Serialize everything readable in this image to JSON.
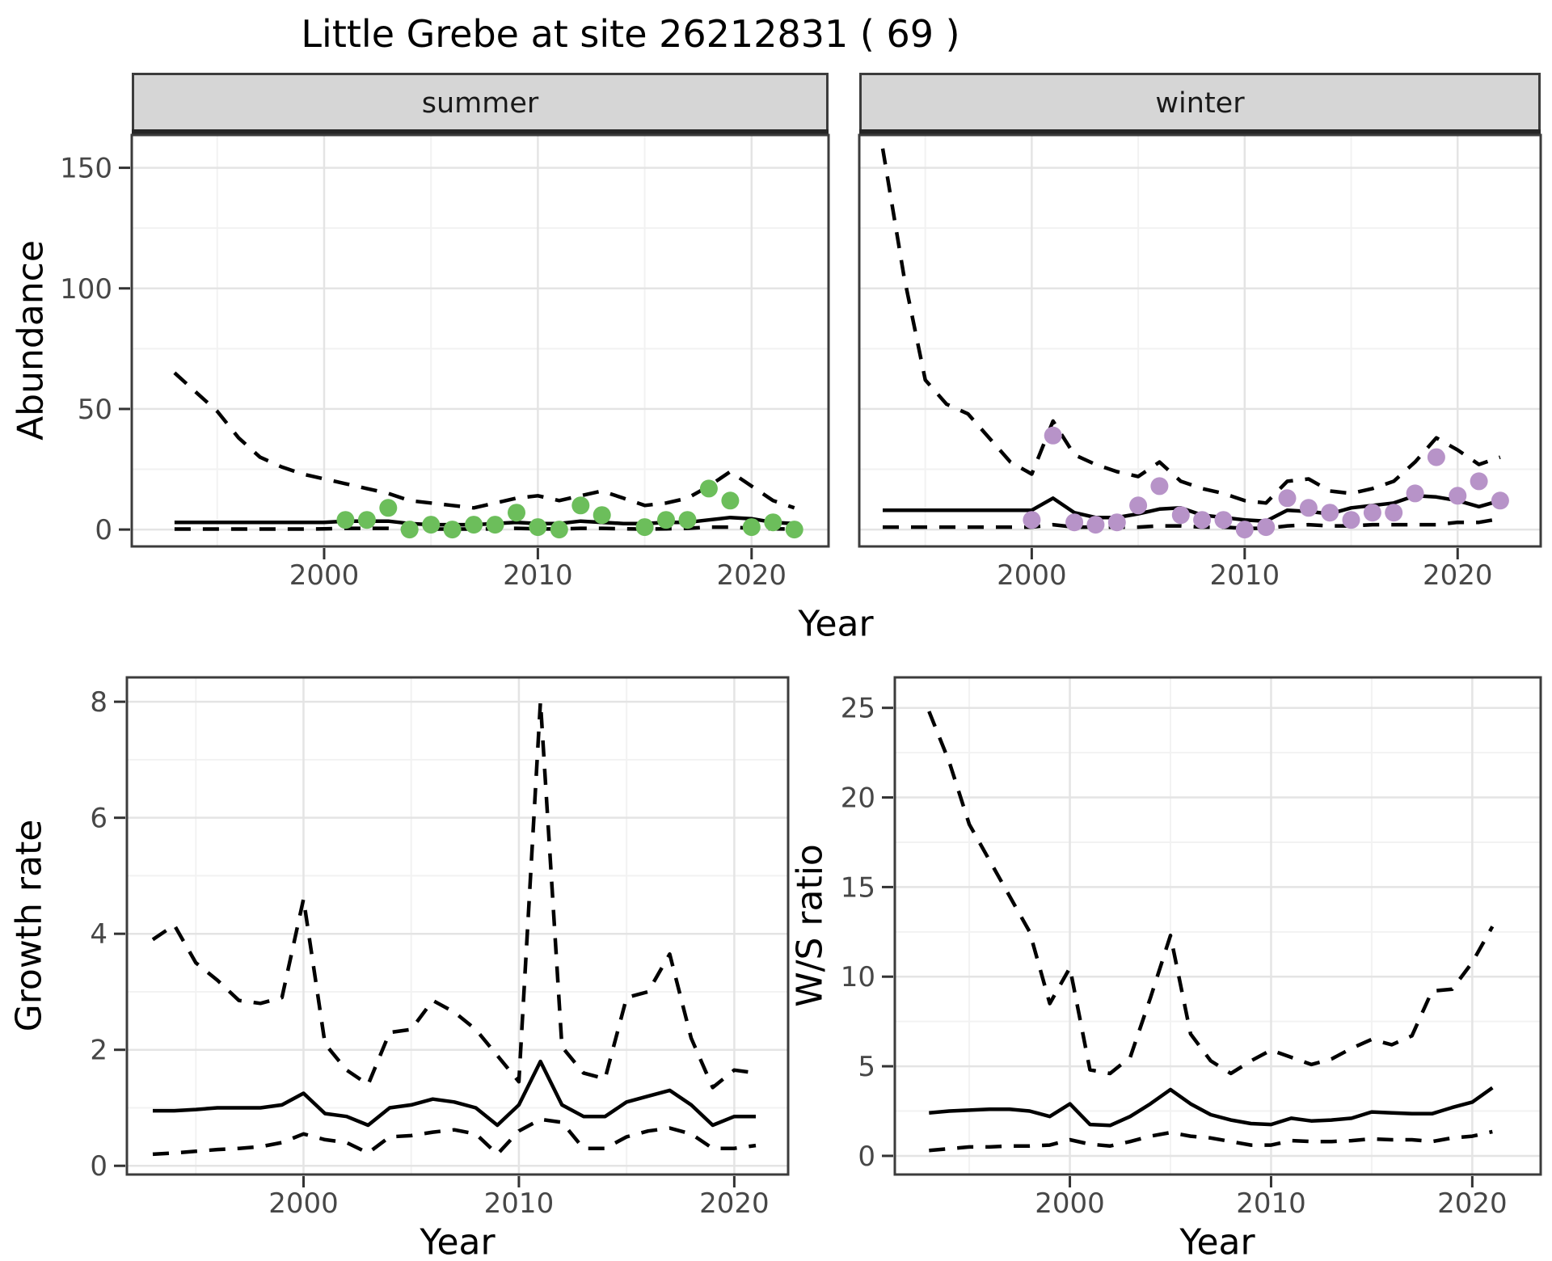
{
  "title": "Little Grebe at site 26212831 ( 69 )",
  "facets": [
    "summer",
    "winter"
  ],
  "axes": {
    "abundance": "Abundance",
    "year": "Year",
    "growth_rate": "Growth rate",
    "ws_ratio": "W/S ratio"
  },
  "colors": {
    "summer_point": "#6CBE5B",
    "winter_point": "#B793C8",
    "line": "#000000",
    "strip_fill": "#D6D6D6",
    "grid_major": "#E4E4E4",
    "grid_minor": "#F2F2F2",
    "panel_border": "#3C3C3C",
    "tick_text": "#474747"
  },
  "chart_data": [
    {
      "type": "line",
      "facet": "summer",
      "title": "Abundance - summer facet",
      "xlabel": "Year",
      "ylabel": "Abundance",
      "x": [
        1993,
        1994,
        1995,
        1996,
        1997,
        1998,
        1999,
        2000,
        2001,
        2002,
        2003,
        2004,
        2005,
        2006,
        2007,
        2008,
        2009,
        2010,
        2011,
        2012,
        2013,
        2014,
        2015,
        2016,
        2017,
        2018,
        2019,
        2020,
        2021,
        2022
      ],
      "series": [
        {
          "name": "median",
          "style": "solid",
          "values": [
            3,
            3,
            3,
            3,
            3,
            3,
            3,
            3,
            3.5,
            3.5,
            3.5,
            2.5,
            2,
            2,
            2,
            2.5,
            3,
            2.5,
            2.5,
            3.5,
            3,
            2.5,
            2.5,
            3,
            3,
            4,
            5,
            4.5,
            3,
            2.5
          ]
        },
        {
          "name": "lower95",
          "style": "dashed",
          "values": [
            0.2,
            0.2,
            0.2,
            0.2,
            0.2,
            0.2,
            0.2,
            0.3,
            0.5,
            0.5,
            0.5,
            0.2,
            0.2,
            0.2,
            0.2,
            0.3,
            0.5,
            0.3,
            0.2,
            0.5,
            0.5,
            0.3,
            0.2,
            0.3,
            0.5,
            1,
            1,
            0.5,
            0.3,
            0.2
          ]
        },
        {
          "name": "upper95",
          "style": "dashed",
          "values": [
            65,
            57,
            49,
            38,
            30,
            26,
            23,
            21,
            19,
            17,
            15,
            12,
            11,
            10,
            9,
            11,
            13,
            14,
            12,
            14,
            16,
            13,
            10,
            11,
            13,
            18,
            24,
            18,
            12,
            9
          ]
        }
      ],
      "points": {
        "name": "observed-counts-summer",
        "color_key": "summer_point",
        "data": [
          [
            2001,
            4
          ],
          [
            2002,
            4
          ],
          [
            2003,
            9
          ],
          [
            2004,
            0
          ],
          [
            2005,
            2
          ],
          [
            2006,
            0
          ],
          [
            2007,
            2
          ],
          [
            2008,
            2
          ],
          [
            2009,
            7
          ],
          [
            2010,
            1
          ],
          [
            2011,
            0
          ],
          [
            2012,
            10
          ],
          [
            2013,
            6
          ],
          [
            2015,
            1
          ],
          [
            2016,
            4
          ],
          [
            2017,
            4
          ],
          [
            2018,
            17
          ],
          [
            2019,
            12
          ],
          [
            2020,
            1
          ],
          [
            2021,
            3
          ],
          [
            2022,
            0
          ]
        ]
      },
      "xticks": [
        2000,
        2010,
        2020
      ],
      "yticks": [
        0,
        50,
        100,
        150
      ],
      "xlim": [
        1991,
        2023.6
      ],
      "ylim": [
        -7,
        163.6
      ],
      "grid": true
    },
    {
      "type": "line",
      "facet": "winter",
      "title": "Abundance - winter facet",
      "xlabel": "Year",
      "ylabel": "Abundance",
      "x": [
        1993,
        1994,
        1995,
        1996,
        1997,
        1998,
        1999,
        2000,
        2001,
        2002,
        2003,
        2004,
        2005,
        2006,
        2007,
        2008,
        2009,
        2010,
        2011,
        2012,
        2013,
        2014,
        2015,
        2016,
        2017,
        2018,
        2019,
        2020,
        2021,
        2022
      ],
      "series": [
        {
          "name": "median",
          "style": "solid",
          "values": [
            8,
            8,
            8,
            8,
            8,
            8,
            8,
            8,
            13,
            7,
            5,
            5,
            6.5,
            8.5,
            9,
            6,
            5,
            4,
            3.5,
            8,
            7.5,
            6.5,
            9,
            10,
            11,
            14,
            13.5,
            12,
            9.5,
            12
          ]
        },
        {
          "name": "lower95",
          "style": "dashed",
          "values": [
            1,
            1,
            1,
            1,
            1,
            1,
            1,
            1,
            2,
            1,
            1,
            1,
            1,
            1.5,
            1.5,
            1,
            1,
            0.5,
            0.5,
            1.5,
            2,
            1.5,
            1.5,
            2,
            2,
            2,
            2,
            3,
            3,
            4.5
          ]
        },
        {
          "name": "upper95",
          "style": "dashed",
          "values": [
            158,
            105,
            62,
            52,
            48,
            38,
            28,
            23,
            45,
            31,
            27,
            24,
            22,
            28,
            20,
            17,
            15,
            12,
            11,
            20,
            21,
            16,
            15,
            17,
            20,
            28,
            38,
            33,
            27,
            30
          ]
        }
      ],
      "points": {
        "name": "observed-counts-winter",
        "color_key": "winter_point",
        "data": [
          [
            2000,
            4
          ],
          [
            2001,
            39
          ],
          [
            2002,
            3
          ],
          [
            2003,
            2
          ],
          [
            2004,
            3
          ],
          [
            2005,
            10
          ],
          [
            2006,
            18
          ],
          [
            2007,
            6
          ],
          [
            2008,
            4
          ],
          [
            2009,
            4
          ],
          [
            2010,
            0
          ],
          [
            2011,
            1
          ],
          [
            2012,
            13
          ],
          [
            2013,
            9
          ],
          [
            2014,
            7
          ],
          [
            2015,
            4
          ],
          [
            2016,
            7
          ],
          [
            2017,
            7
          ],
          [
            2018,
            15
          ],
          [
            2019,
            30
          ],
          [
            2020,
            14
          ],
          [
            2021,
            20
          ],
          [
            2022,
            12
          ]
        ]
      },
      "xticks": [
        2000,
        2010,
        2020
      ],
      "yticks": [
        0,
        50,
        100,
        150
      ],
      "xlim": [
        1991.9,
        2023.9
      ],
      "ylim": [
        -7,
        163.6
      ],
      "grid": true
    },
    {
      "type": "line",
      "facet": null,
      "title": "Growth rate",
      "xlabel": "Year",
      "ylabel": "Growth rate",
      "x": [
        1993,
        1994,
        1995,
        1996,
        1997,
        1998,
        1999,
        2000,
        2001,
        2002,
        2003,
        2004,
        2005,
        2006,
        2007,
        2008,
        2009,
        2010,
        2011,
        2012,
        2013,
        2014,
        2015,
        2016,
        2017,
        2018,
        2019,
        2020,
        2021
      ],
      "series": [
        {
          "name": "median",
          "style": "solid",
          "values": [
            0.95,
            0.95,
            0.97,
            1,
            1,
            1,
            1.05,
            1.25,
            0.9,
            0.85,
            0.7,
            1,
            1.05,
            1.15,
            1.1,
            1,
            0.7,
            1.05,
            1.8,
            1.05,
            0.85,
            0.85,
            1.1,
            1.2,
            1.3,
            1.05,
            0.7,
            0.85,
            0.85
          ]
        },
        {
          "name": "lower95",
          "style": "dashed",
          "values": [
            0.2,
            0.22,
            0.25,
            0.28,
            0.3,
            0.33,
            0.4,
            0.55,
            0.45,
            0.4,
            0.22,
            0.5,
            0.52,
            0.58,
            0.62,
            0.55,
            0.2,
            0.6,
            0.8,
            0.75,
            0.3,
            0.3,
            0.5,
            0.6,
            0.65,
            0.55,
            0.3,
            0.3,
            0.35
          ]
        },
        {
          "name": "upper95",
          "style": "dashed",
          "values": [
            3.9,
            4.15,
            3.5,
            3.2,
            2.85,
            2.8,
            2.9,
            4.6,
            2.1,
            1.65,
            1.4,
            2.3,
            2.35,
            2.85,
            2.65,
            2.35,
            1.9,
            1.45,
            8,
            2.05,
            1.6,
            1.5,
            2.9,
            3,
            3.65,
            2.2,
            1.35,
            1.65,
            1.6
          ]
        }
      ],
      "points": null,
      "xticks": [
        2000,
        2010,
        2020
      ],
      "yticks": [
        0,
        2,
        4,
        6,
        8
      ],
      "xlim": [
        1991.8,
        2022.5
      ],
      "ylim": [
        -0.15,
        8.42
      ],
      "grid": true
    },
    {
      "type": "line",
      "facet": null,
      "title": "W/S ratio",
      "xlabel": "Year",
      "ylabel": "W/S ratio",
      "x": [
        1993,
        1994,
        1995,
        1996,
        1997,
        1998,
        1999,
        2000,
        2001,
        2002,
        2003,
        2004,
        2005,
        2006,
        2007,
        2008,
        2009,
        2010,
        2011,
        2012,
        2013,
        2014,
        2015,
        2016,
        2017,
        2018,
        2019,
        2020,
        2021
      ],
      "series": [
        {
          "name": "median",
          "style": "solid",
          "values": [
            2.4,
            2.5,
            2.55,
            2.6,
            2.6,
            2.5,
            2.2,
            2.9,
            1.75,
            1.7,
            2.2,
            2.9,
            3.7,
            2.9,
            2.3,
            2,
            1.8,
            1.75,
            2.1,
            1.95,
            2,
            2.1,
            2.45,
            2.4,
            2.35,
            2.35,
            2.7,
            3,
            3.8
          ]
        },
        {
          "name": "lower95",
          "style": "dashed",
          "values": [
            0.3,
            0.4,
            0.5,
            0.5,
            0.55,
            0.55,
            0.6,
            0.9,
            0.65,
            0.55,
            0.8,
            1.1,
            1.3,
            1.1,
            1,
            0.8,
            0.6,
            0.6,
            0.85,
            0.8,
            0.8,
            0.85,
            0.95,
            0.9,
            0.9,
            0.8,
            1,
            1.1,
            1.35
          ]
        },
        {
          "name": "upper95",
          "style": "dashed",
          "values": [
            24.8,
            22,
            18.5,
            16.5,
            14.5,
            12.5,
            8.5,
            10.5,
            4.8,
            4.6,
            5.5,
            8.8,
            12.3,
            6.8,
            5.3,
            4.6,
            5.3,
            5.9,
            5.5,
            5.1,
            5.4,
            6,
            6.5,
            6.2,
            6.7,
            9.2,
            9.3,
            10.8,
            12.8
          ]
        }
      ],
      "points": null,
      "xticks": [
        2000,
        2010,
        2020
      ],
      "yticks": [
        0,
        5,
        10,
        15,
        20,
        25
      ],
      "xlim": [
        1991.3,
        2023.4
      ],
      "ylim": [
        -1.04,
        26.7
      ],
      "grid": true
    }
  ]
}
